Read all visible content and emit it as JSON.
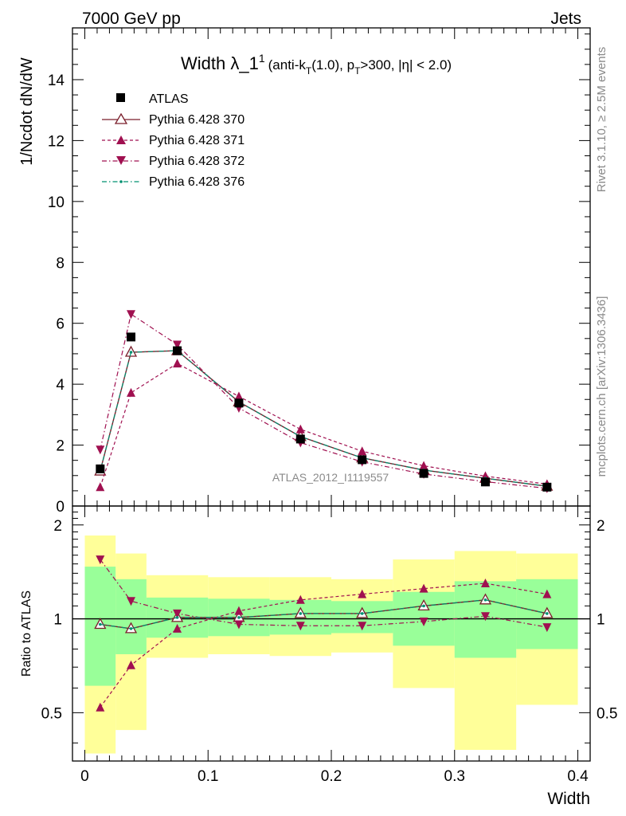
{
  "header": {
    "left": "7000 GeV pp",
    "right": "Jets"
  },
  "side_labels": {
    "rivet": "Rivet 3.1.10, ≥ 2.5M events",
    "mcplots": "mcplots.cern.ch [arXiv:1306.3436]"
  },
  "watermark": "ATLAS_2012_I1119557",
  "chart_data": [
    {
      "type": "line",
      "title": {
        "main": "Width λ_1",
        "main_sup": "1",
        "part1": "(anti-k",
        "sub_t1": "T",
        "part2": "(1.0), p",
        "sub_t2": "T",
        "part3": ">300, |η| < 2.0)"
      },
      "ylabel": "1/Ncdot dN/dW",
      "xlim": [
        -0.01,
        0.41
      ],
      "ylim": [
        0,
        15.7
      ],
      "yticks": [
        0,
        2,
        4,
        6,
        8,
        10,
        12,
        14
      ],
      "ytick_labels": [
        "0",
        "2",
        "4",
        "6",
        "8",
        "10",
        "12",
        "14"
      ],
      "legend_position": "top-left",
      "x": [
        0.0125,
        0.0375,
        0.075,
        0.125,
        0.175,
        0.225,
        0.275,
        0.325,
        0.375
      ],
      "series": [
        {
          "name": "ATLAS",
          "style": "data",
          "color": "#000000",
          "values": [
            1.22,
            5.55,
            5.1,
            3.38,
            2.2,
            1.52,
            1.07,
            0.79,
            0.62
          ]
        },
        {
          "name": "Pythia 6.428 370",
          "style": "open-triangle-solid",
          "color": "#7a1f2b",
          "values": [
            1.15,
            5.05,
            5.1,
            3.42,
            2.28,
            1.58,
            1.18,
            0.91,
            0.65
          ]
        },
        {
          "name": "Pythia 6.428 371",
          "style": "filled-triangle-dashed",
          "color": "#a01050",
          "values": [
            0.62,
            3.72,
            4.68,
            3.6,
            2.52,
            1.8,
            1.32,
            0.98,
            0.72
          ]
        },
        {
          "name": "Pythia 6.428 372",
          "style": "filled-invtriangle-dashdot",
          "color": "#a01050",
          "values": [
            1.85,
            6.3,
            5.3,
            3.22,
            2.08,
            1.45,
            1.05,
            0.8,
            0.58
          ]
        },
        {
          "name": "Pythia 6.428 376",
          "style": "dot-dashdot",
          "color": "#009070",
          "values": [
            1.15,
            5.05,
            5.1,
            3.42,
            2.28,
            1.58,
            1.18,
            0.91,
            0.65
          ]
        }
      ]
    },
    {
      "type": "line",
      "ylabel": "Ratio to ATLAS",
      "xlabel": "Width",
      "xlim": [
        -0.01,
        0.41
      ],
      "ylim": [
        0.35,
        2.3
      ],
      "yticks": [
        0.5,
        1,
        2
      ],
      "ytick_labels": [
        "0.5",
        "1",
        "2"
      ],
      "xticks": [
        0,
        0.1,
        0.2,
        0.3,
        0.4
      ],
      "xtick_labels": [
        "0",
        "0.1",
        "0.2",
        "0.3",
        "0.4"
      ],
      "bands": {
        "edges": [
          0,
          0.025,
          0.05,
          0.1,
          0.15,
          0.2,
          0.25,
          0.3,
          0.35,
          0.4
        ],
        "yellow_low": [
          0.37,
          0.44,
          0.75,
          0.77,
          0.76,
          0.78,
          0.6,
          0.38,
          0.53
        ],
        "yellow_high": [
          1.85,
          1.62,
          1.38,
          1.36,
          1.36,
          1.34,
          1.55,
          1.65,
          1.62
        ],
        "green_low": [
          0.61,
          0.77,
          0.87,
          0.88,
          0.89,
          0.9,
          0.82,
          0.75,
          0.8
        ],
        "green_high": [
          1.47,
          1.34,
          1.17,
          1.16,
          1.15,
          1.14,
          1.22,
          1.32,
          1.34
        ]
      },
      "series": [
        {
          "name": "Pythia 6.428 370",
          "values": [
            0.96,
            0.93,
            1.01,
            1.01,
            1.04,
            1.04,
            1.1,
            1.15,
            1.04
          ]
        },
        {
          "name": "Pythia 6.428 371",
          "values": [
            0.52,
            0.71,
            0.93,
            1.06,
            1.15,
            1.2,
            1.25,
            1.3,
            1.2
          ]
        },
        {
          "name": "Pythia 6.428 372",
          "values": [
            1.55,
            1.14,
            1.04,
            0.96,
            0.95,
            0.95,
            0.98,
            1.02,
            0.94
          ]
        },
        {
          "name": "Pythia 6.428 376",
          "values": [
            0.96,
            0.93,
            1.01,
            1.01,
            1.04,
            1.04,
            1.1,
            1.15,
            1.04
          ]
        }
      ]
    }
  ]
}
